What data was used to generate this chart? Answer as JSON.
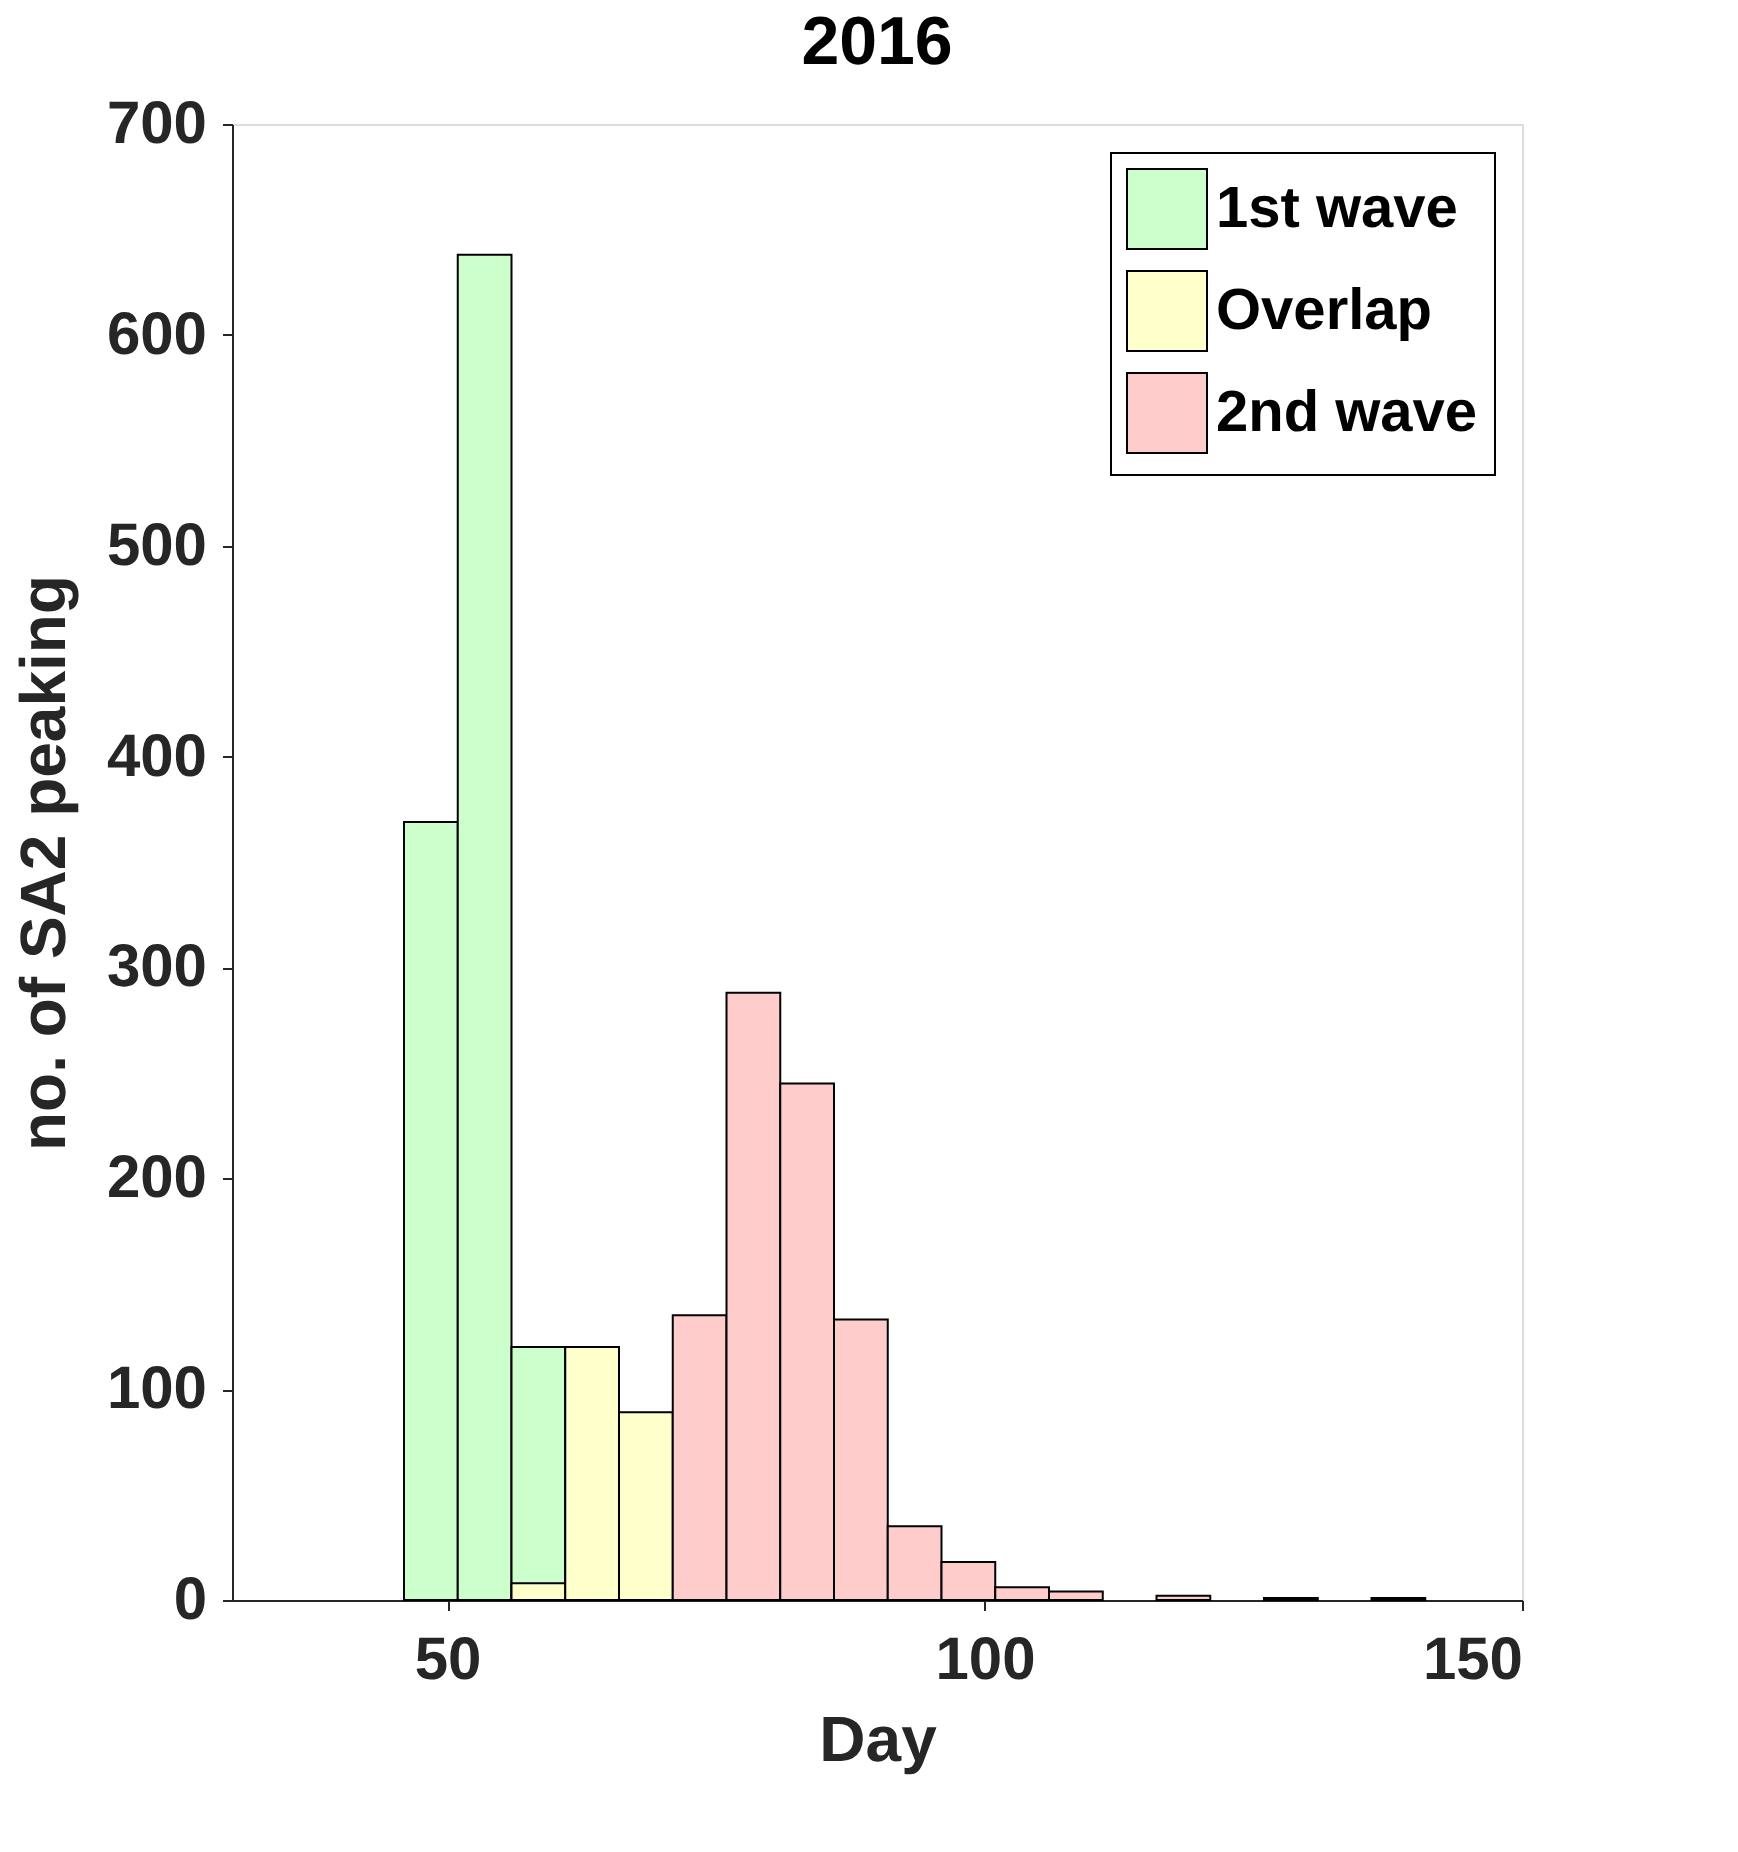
{
  "chart_data": {
    "type": "histogram",
    "title": "2016",
    "xlabel": "Day",
    "ylabel": "no. of SA2 peaking",
    "bins": [
      46,
      51,
      56,
      61,
      66,
      71,
      76,
      81,
      86,
      91,
      96,
      101,
      106,
      111,
      116,
      121,
      126,
      131,
      136,
      141
    ],
    "series": [
      {
        "name": "1st wave",
        "color": "#ccffcc",
        "values": [
          369,
          638,
          120,
          null,
          null,
          null,
          null,
          null,
          null,
          null,
          null,
          null,
          null,
          null,
          null,
          null,
          null,
          null,
          null
        ]
      },
      {
        "name": "Overlap",
        "color": "#ffffcc",
        "values": [
          null,
          null,
          8,
          120,
          89,
          null,
          null,
          null,
          null,
          null,
          null,
          null,
          null,
          null,
          null,
          null,
          null,
          null,
          null
        ]
      },
      {
        "name": "2nd wave",
        "color": "#ffcccc",
        "values": [
          null,
          null,
          null,
          null,
          null,
          135,
          288,
          245,
          133,
          35,
          18,
          6,
          4,
          null,
          2,
          null,
          1,
          null,
          1
        ]
      }
    ],
    "xlim": [
      30,
      150
    ],
    "xticks": [
      50,
      100,
      150
    ],
    "ylim": [
      0,
      700
    ],
    "yticks": [
      0,
      100,
      200,
      300,
      400,
      500,
      600,
      700
    ],
    "grid": false,
    "legend": "top right"
  }
}
